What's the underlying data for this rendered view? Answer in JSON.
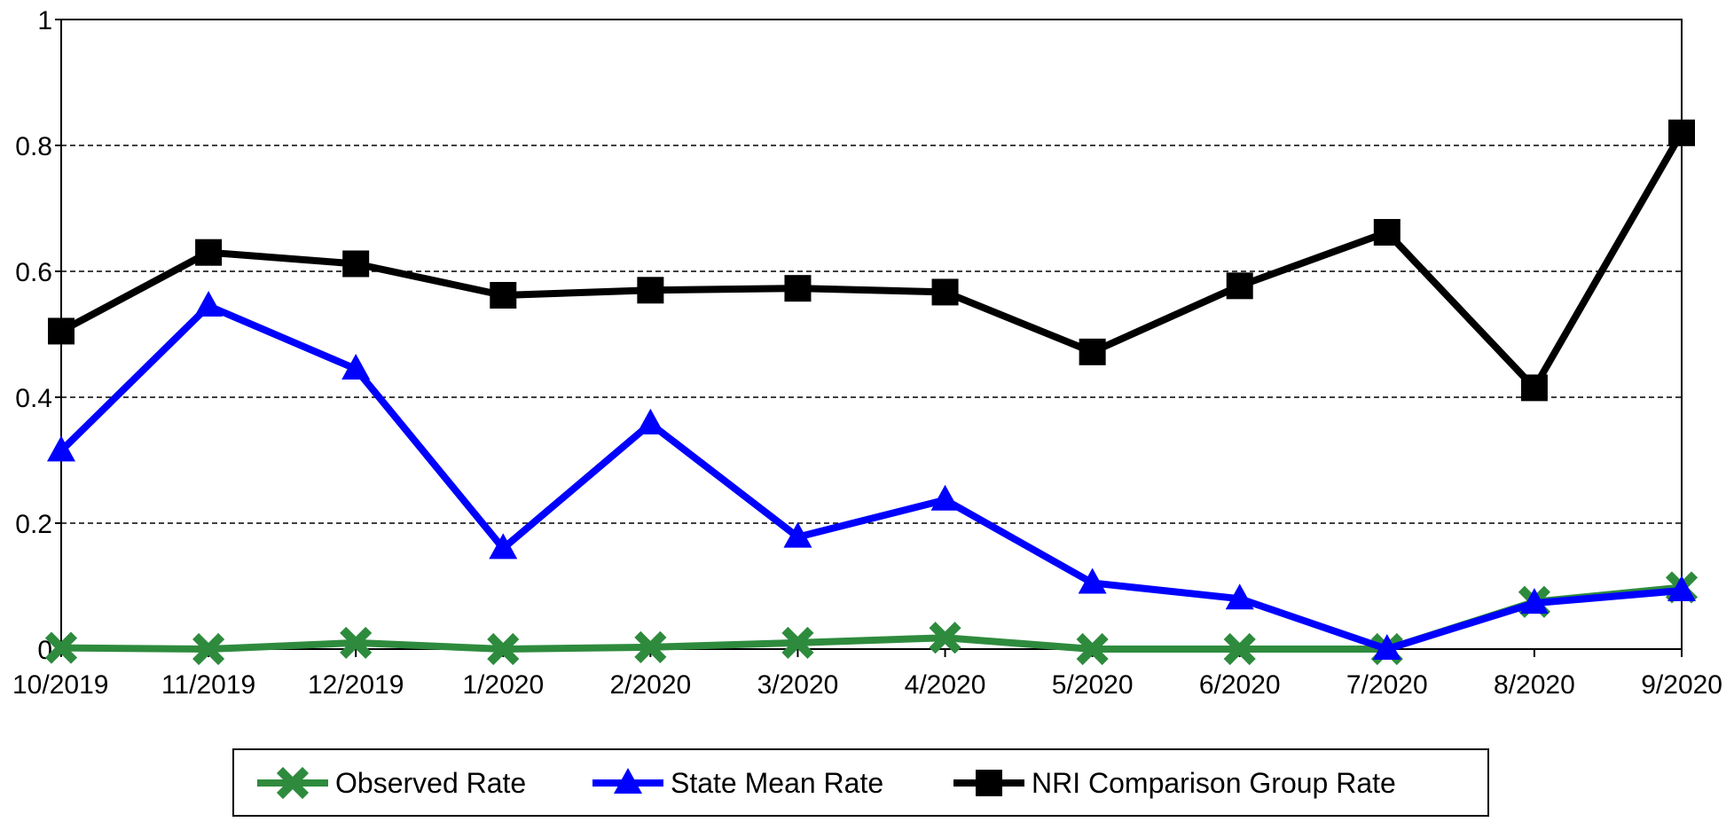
{
  "chart_data": {
    "type": "line",
    "categories": [
      "10/2019",
      "11/2019",
      "12/2019",
      "1/2020",
      "2/2020",
      "3/2020",
      "4/2020",
      "5/2020",
      "6/2020",
      "7/2020",
      "8/2020",
      "9/2020"
    ],
    "ylim": [
      0,
      1
    ],
    "yticks": [
      0,
      0.2,
      0.4,
      0.6,
      0.8,
      1
    ],
    "ytick_labels": [
      "0",
      "0.2",
      "0.4",
      "0.6",
      "0.8",
      "1"
    ],
    "grid": "horizontal dashed",
    "legend_position": "bottom",
    "series": [
      {
        "name": "Observed Rate",
        "color": "#2e8b3d",
        "marker": "x",
        "values": [
          0.002,
          0.0,
          0.01,
          0.0,
          0.003,
          0.01,
          0.018,
          0.0,
          0.0,
          0.0,
          0.075,
          0.098
        ]
      },
      {
        "name": "State Mean Rate",
        "color": "#0000ff",
        "marker": "triangle",
        "values": [
          0.315,
          0.545,
          0.445,
          0.16,
          0.358,
          0.178,
          0.237,
          0.105,
          0.08,
          0.0,
          0.073,
          0.093
        ]
      },
      {
        "name": "NRI Comparison Group Rate",
        "color": "#000000",
        "marker": "square",
        "values": [
          0.505,
          0.63,
          0.612,
          0.562,
          0.57,
          0.573,
          0.567,
          0.472,
          0.577,
          0.662,
          0.415,
          0.82
        ]
      }
    ]
  }
}
